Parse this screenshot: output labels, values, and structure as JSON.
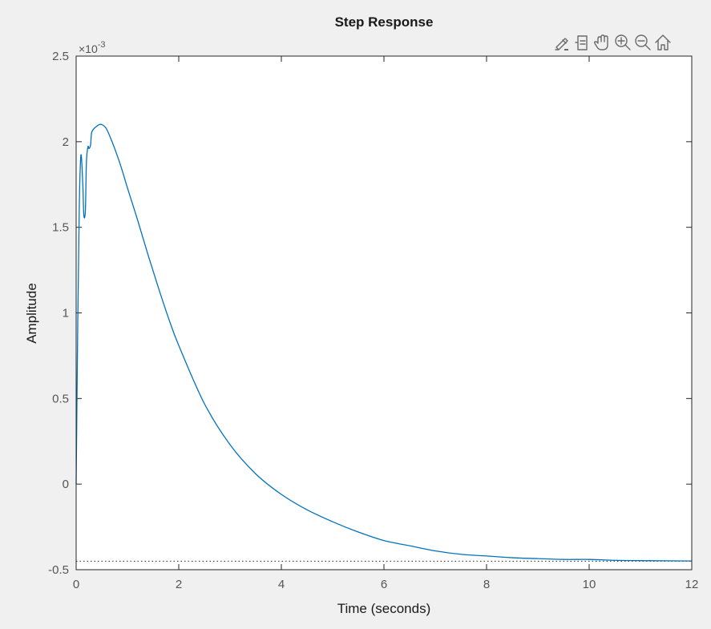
{
  "colors": {
    "background": "#f0f0f0",
    "axes_background": "#ffffff",
    "axes_edge": "#262626",
    "line": "#0072bd",
    "reference_line": "#262626",
    "tick_text": "#555555"
  },
  "toolbar": {
    "icons": [
      "brush-icon",
      "data-tips-icon",
      "pan-hand-icon",
      "zoom-in-icon",
      "zoom-out-icon",
      "home-icon"
    ]
  },
  "chart_data": {
    "type": "line",
    "title": "Step Response",
    "xlabel": "Time (seconds)",
    "ylabel": "Amplitude",
    "exponent_label": "×10",
    "exponent_power": "-3",
    "xlim": [
      0,
      12
    ],
    "ylim": [
      -0.5,
      2.5
    ],
    "xticks": [
      "0",
      "2",
      "4",
      "6",
      "8",
      "10",
      "12"
    ],
    "yticks": [
      "-0.5",
      "0",
      "0.5",
      "1",
      "1.5",
      "2",
      "2.5"
    ],
    "grid": false,
    "series": [
      {
        "x": [
          0,
          0.03,
          0.06,
          0.08,
          0.1,
          0.13,
          0.15,
          0.18,
          0.2,
          0.23,
          0.25,
          0.28,
          0.3,
          0.33,
          0.36,
          0.4,
          0.45,
          0.5,
          0.55,
          0.6,
          0.7,
          0.8,
          0.9,
          1.0,
          1.2,
          1.4,
          1.6,
          1.8,
          2.0,
          2.5,
          3.0,
          3.5,
          4.0,
          4.5,
          5.0,
          5.5,
          6.0,
          6.5,
          7.0,
          7.5,
          8.0,
          8.5,
          9.0,
          9.5,
          10.0,
          10.5,
          11.0,
          11.5,
          12.0
        ],
        "y": [
          0,
          0.9,
          1.6,
          1.85,
          1.92,
          1.75,
          1.57,
          1.6,
          1.88,
          1.97,
          1.96,
          1.98,
          2.05,
          2.07,
          2.08,
          2.09,
          2.1,
          2.1,
          2.09,
          2.07,
          2.0,
          1.92,
          1.83,
          1.73,
          1.54,
          1.34,
          1.15,
          0.97,
          0.81,
          0.47,
          0.23,
          0.06,
          -0.06,
          -0.15,
          -0.22,
          -0.28,
          -0.33,
          -0.36,
          -0.39,
          -0.41,
          -0.42,
          -0.43,
          -0.435,
          -0.44,
          -0.44,
          -0.445,
          -0.447,
          -0.448,
          -0.449
        ]
      }
    ],
    "reference_lines": [
      {
        "y": -0.45,
        "style": "dotted"
      }
    ]
  }
}
